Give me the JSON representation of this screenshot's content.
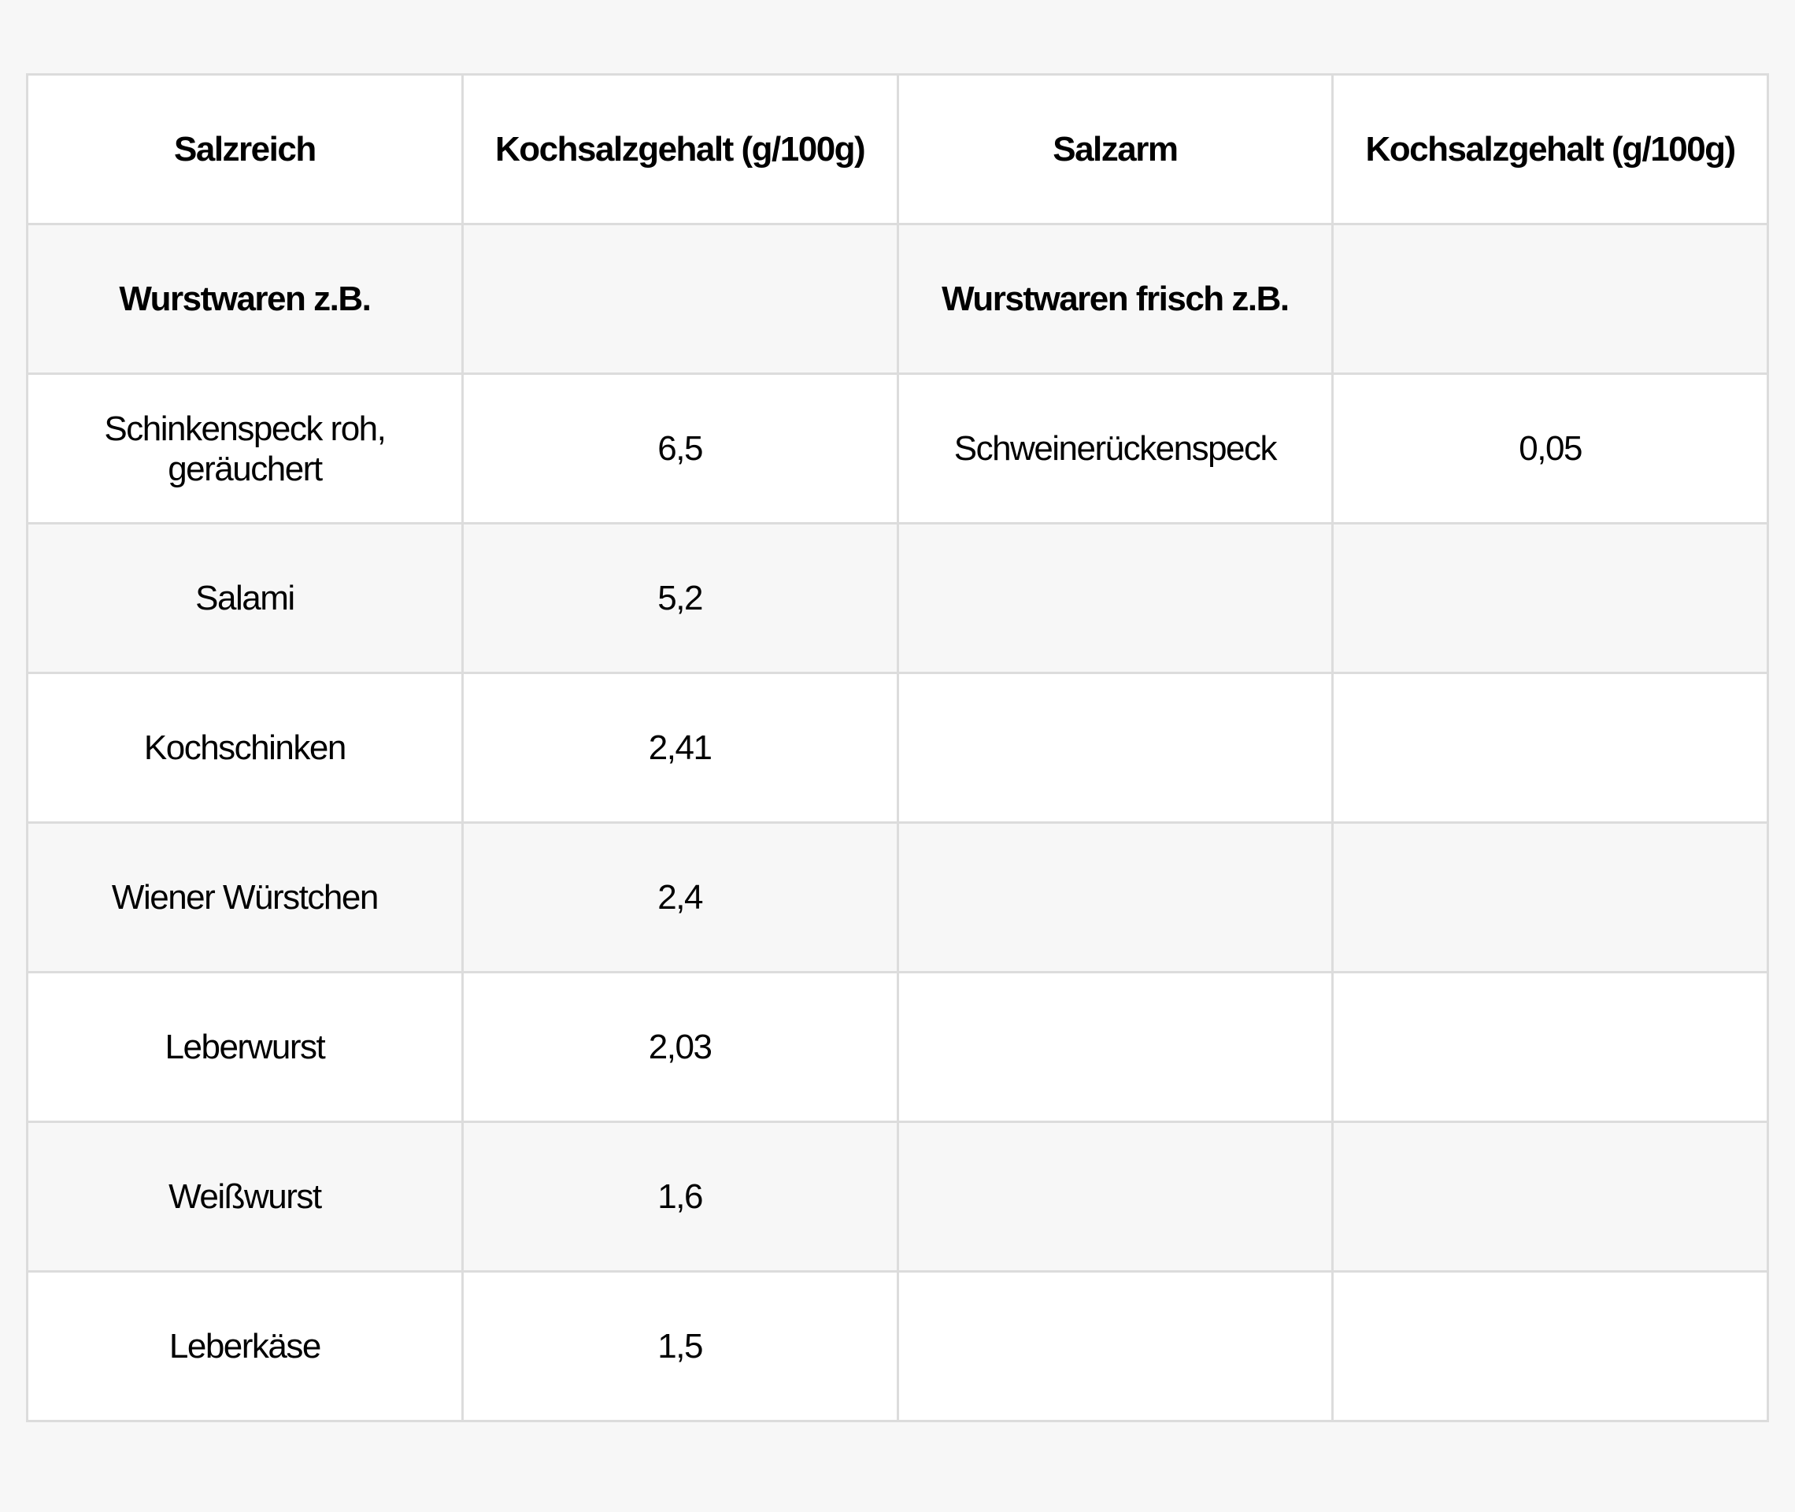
{
  "table": {
    "headers": [
      "Salzreich",
      "Kochsalzgehalt (g/100g)",
      "Salzarm",
      "Kochsalzgehalt (g/100g)"
    ],
    "rows": [
      {
        "cells": [
          "Wurstwaren z.B.",
          "",
          "Wurstwaren frisch z.B.",
          ""
        ],
        "bold": true
      },
      {
        "cells": [
          "Schinkenspeck roh, geräuchert",
          "6,5",
          "Schweinerückenspeck",
          "0,05"
        ],
        "bold": false
      },
      {
        "cells": [
          "Salami",
          "5,2",
          "",
          ""
        ],
        "bold": false
      },
      {
        "cells": [
          "Kochschinken",
          "2,41",
          "",
          ""
        ],
        "bold": false
      },
      {
        "cells": [
          "Wiener Würstchen",
          "2,4",
          "",
          ""
        ],
        "bold": false
      },
      {
        "cells": [
          "Leberwurst",
          "2,03",
          "",
          ""
        ],
        "bold": false
      },
      {
        "cells": [
          "Weißwurst",
          "1,6",
          "",
          ""
        ],
        "bold": false
      },
      {
        "cells": [
          "Leberkäse",
          "1,5",
          "",
          ""
        ],
        "bold": false
      }
    ]
  },
  "colors": {
    "page_background": "#f7f7f7",
    "row_white": "#ffffff",
    "row_grey": "#f7f7f7",
    "border": "#dcdcdc",
    "text": "#000000"
  }
}
